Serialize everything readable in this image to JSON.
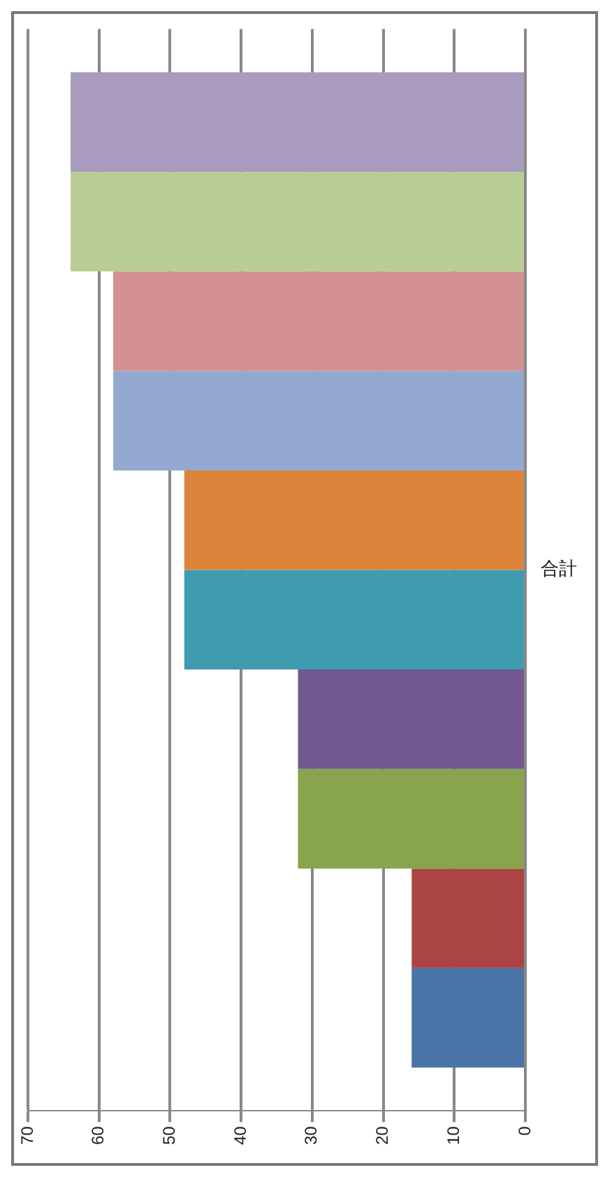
{
  "chart_data": {
    "type": "bar",
    "orientation": "horizontal",
    "categories": [
      "合計"
    ],
    "series": [
      {
        "color": "#a99bbd",
        "values": [
          64
        ]
      },
      {
        "color": "#b8cd95",
        "values": [
          64
        ]
      },
      {
        "color": "#d39090",
        "values": [
          58
        ]
      },
      {
        "color": "#93a9d0",
        "values": [
          58
        ]
      },
      {
        "color": "#dc843c",
        "values": [
          48
        ]
      },
      {
        "color": "#3e9bb0",
        "values": [
          48
        ]
      },
      {
        "color": "#72588e",
        "values": [
          32
        ]
      },
      {
        "color": "#88a44c",
        "values": [
          32
        ]
      },
      {
        "color": "#ab4542",
        "values": [
          16
        ]
      },
      {
        "color": "#4874a8",
        "values": [
          16
        ]
      }
    ],
    "xlim": [
      70,
      0
    ],
    "xticks": [
      0,
      10,
      20,
      30,
      40,
      50,
      60,
      70
    ],
    "grid": "x",
    "legend": false
  }
}
